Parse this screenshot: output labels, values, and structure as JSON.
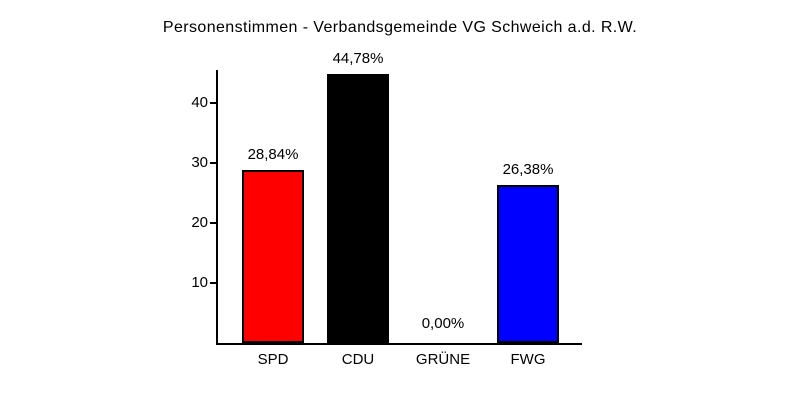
{
  "chart_data": {
    "type": "bar",
    "title": "Personenstimmen - Verbandsgemeinde VG Schweich a.d. R.W.",
    "categories": [
      "SPD",
      "CDU",
      "GRÜNE",
      "FWG"
    ],
    "values": [
      28.84,
      44.78,
      0.0,
      26.38
    ],
    "value_labels": [
      "28,84%",
      "44,78%",
      "0,00%",
      "26,38%"
    ],
    "bar_colors": [
      "#ff0000",
      "#000000",
      null,
      "#0000ff"
    ],
    "yticks": [
      10,
      20,
      30,
      40
    ],
    "ylim": [
      0,
      45.5
    ],
    "xlabel": "",
    "ylabel": "",
    "grid": false,
    "legend": null,
    "background": "#ffffff",
    "axis_color": "#000000"
  }
}
